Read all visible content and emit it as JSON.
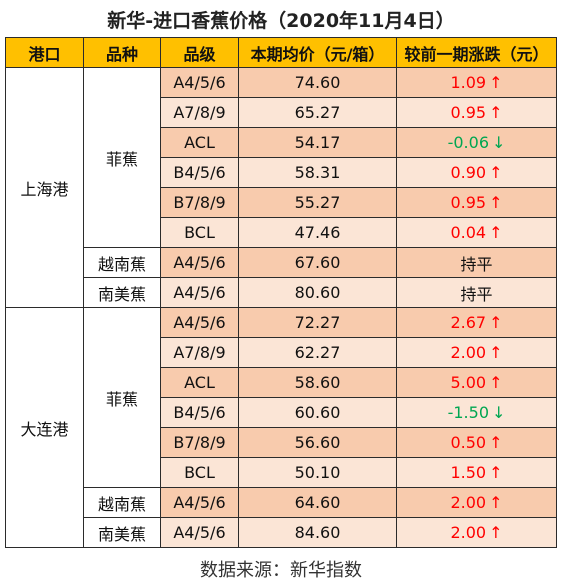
{
  "title": "新华-进口香蕉价格（2020年11月4日）",
  "headers": [
    "港口",
    "品种",
    "品级",
    "本期均价（元/箱）",
    "较前一期涨跌（元）"
  ],
  "ports": [
    {
      "name": "上海港",
      "varieties": [
        {
          "name": "菲蕉",
          "rows": [
            {
              "grade": "A4/5/6",
              "price": "74.60",
              "change": "1.09",
              "arrow": "↑",
              "trend": "up"
            },
            {
              "grade": "A7/8/9",
              "price": "65.27",
              "change": "0.95",
              "arrow": "↑",
              "trend": "up"
            },
            {
              "grade": "ACL",
              "price": "54.17",
              "change": "-0.06",
              "arrow": "↓",
              "trend": "down"
            },
            {
              "grade": "B4/5/6",
              "price": "58.31",
              "change": "0.90",
              "arrow": "↑",
              "trend": "up"
            },
            {
              "grade": "B7/8/9",
              "price": "55.27",
              "change": "0.95",
              "arrow": "↑",
              "trend": "up"
            },
            {
              "grade": "BCL",
              "price": "47.46",
              "change": "0.04",
              "arrow": "↑",
              "trend": "up"
            }
          ]
        },
        {
          "name": "越南蕉",
          "rows": [
            {
              "grade": "A4/5/6",
              "price": "67.60",
              "change": "持平",
              "arrow": "",
              "trend": "flat"
            }
          ]
        },
        {
          "name": "南美蕉",
          "rows": [
            {
              "grade": "A4/5/6",
              "price": "80.60",
              "change": "持平",
              "arrow": "",
              "trend": "flat"
            }
          ]
        }
      ]
    },
    {
      "name": "大连港",
      "varieties": [
        {
          "name": "菲蕉",
          "rows": [
            {
              "grade": "A4/5/6",
              "price": "72.27",
              "change": "2.67",
              "arrow": "↑",
              "trend": "up"
            },
            {
              "grade": "A7/8/9",
              "price": "62.27",
              "change": "2.00",
              "arrow": "↑",
              "trend": "up"
            },
            {
              "grade": "ACL",
              "price": "58.60",
              "change": "5.00",
              "arrow": "↑",
              "trend": "up"
            },
            {
              "grade": "B4/5/6",
              "price": "60.60",
              "change": "-1.50",
              "arrow": "↓",
              "trend": "down"
            },
            {
              "grade": "B7/8/9",
              "price": "56.60",
              "change": "0.50",
              "arrow": "↑",
              "trend": "up"
            },
            {
              "grade": "BCL",
              "price": "50.10",
              "change": "1.50",
              "arrow": "↑",
              "trend": "up"
            }
          ]
        },
        {
          "name": "越南蕉",
          "rows": [
            {
              "grade": "A4/5/6",
              "price": "64.60",
              "change": "2.00",
              "arrow": "↑",
              "trend": "up"
            }
          ]
        },
        {
          "name": "南美蕉",
          "rows": [
            {
              "grade": "A4/5/6",
              "price": "84.60",
              "change": "2.00",
              "arrow": "↑",
              "trend": "up"
            }
          ]
        }
      ]
    }
  ],
  "colors": {
    "header_bg": "#ffc000",
    "row_dark": "#f8cbad",
    "row_light": "#fbe5d6",
    "up": "#ff0000",
    "down": "#00a651"
  },
  "footer": "数据来源：新华指数"
}
